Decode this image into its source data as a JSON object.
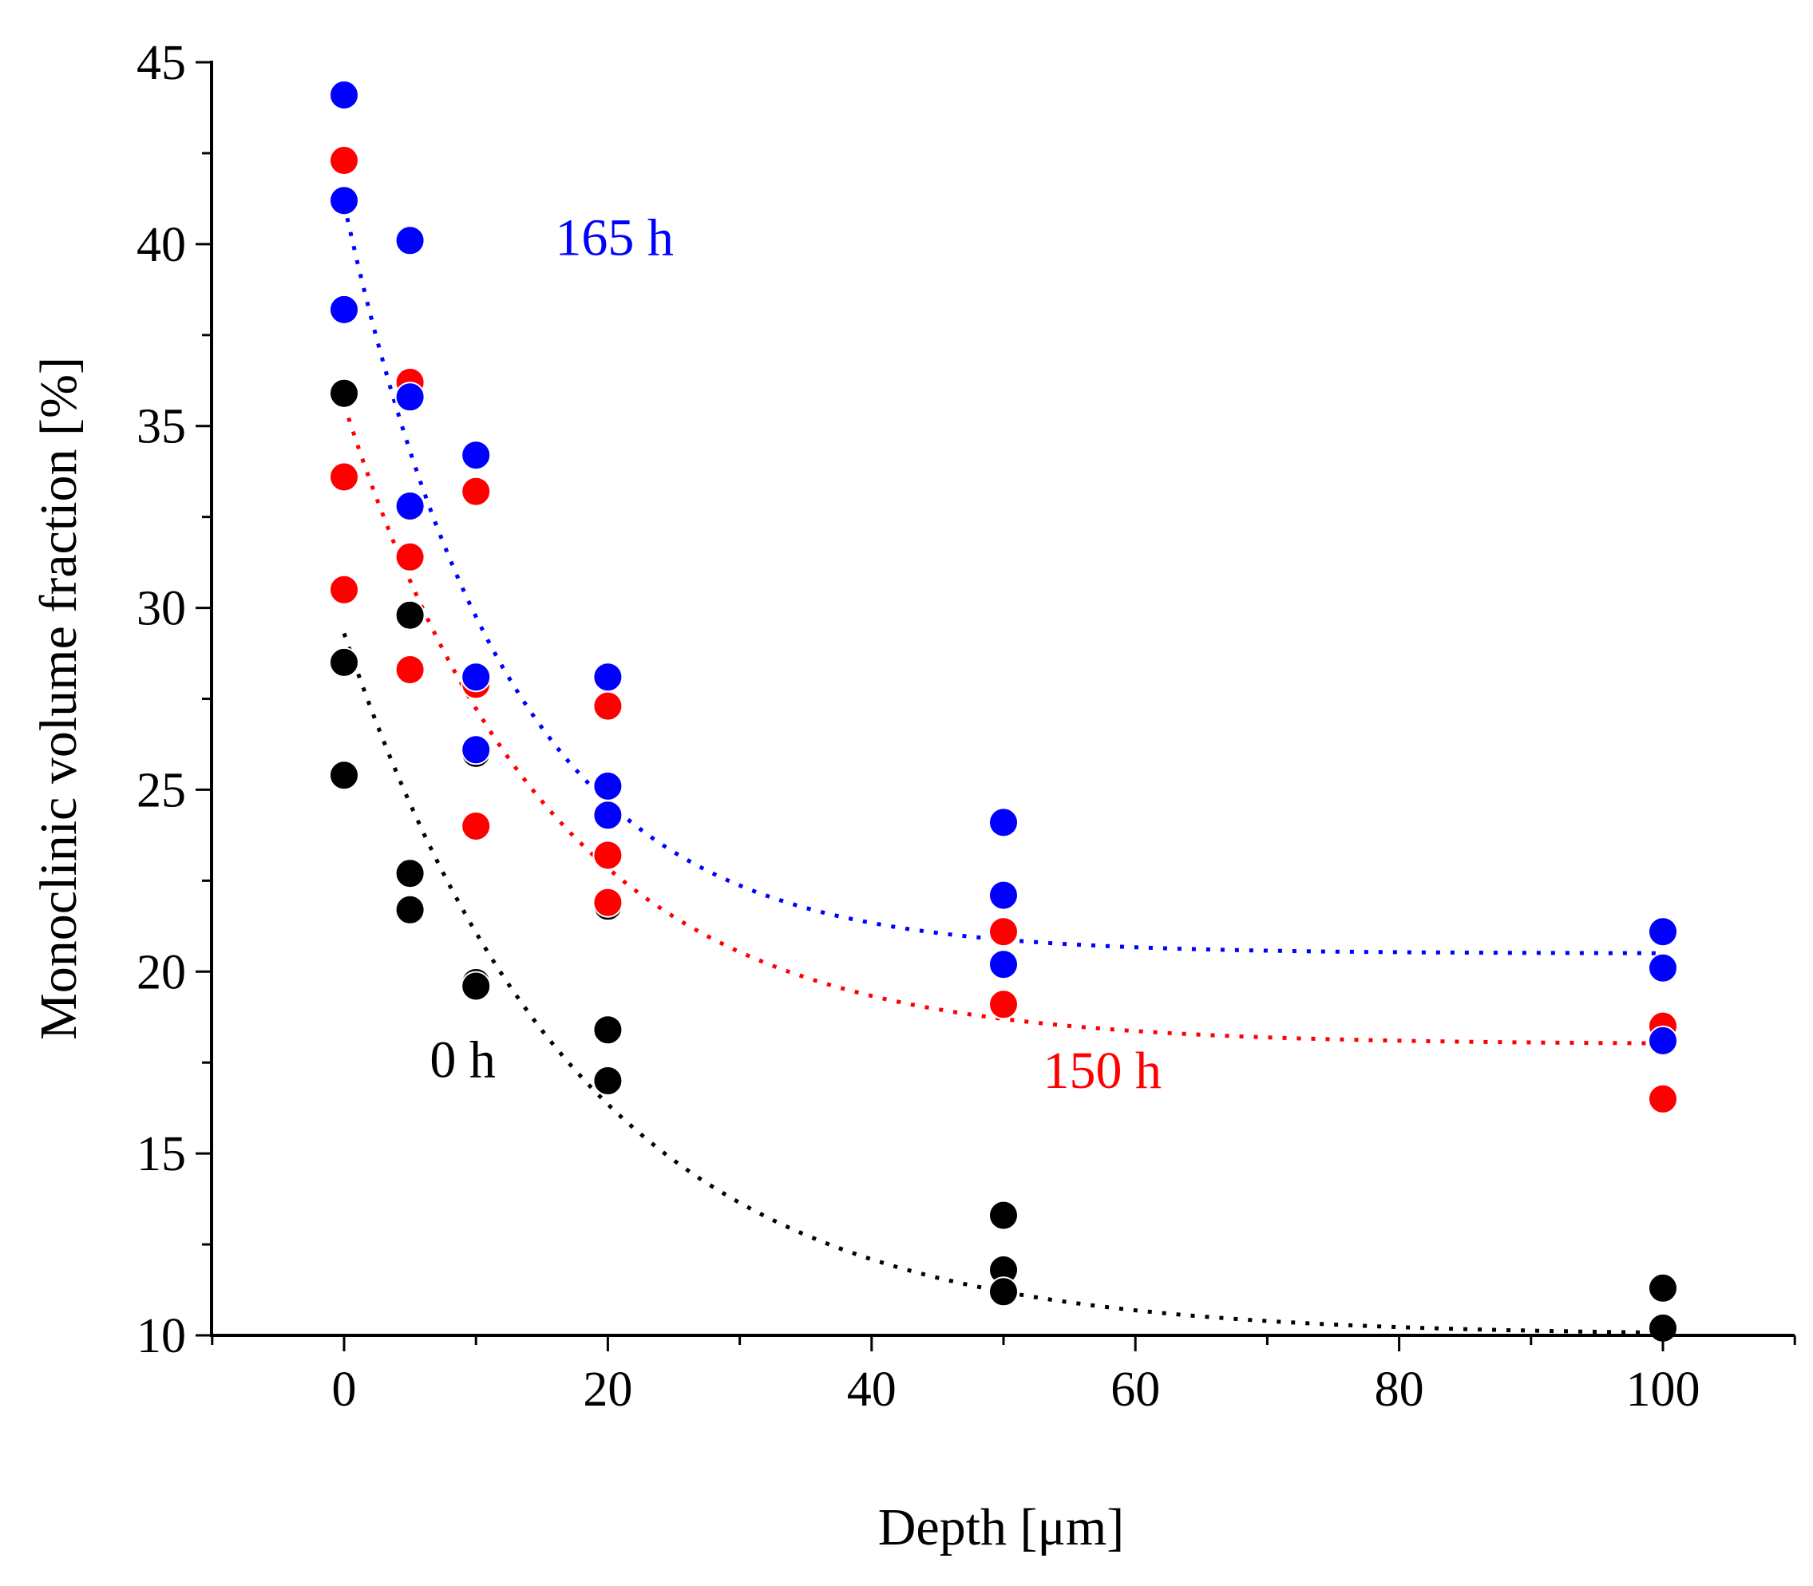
{
  "chart_data": {
    "type": "scatter",
    "title": "",
    "xlabel": "Depth [μm]",
    "ylabel": "Monoclinic volume fraction [%]",
    "xlim": [
      -10,
      110
    ],
    "ylim": [
      10,
      45
    ],
    "xticks": [
      0,
      20,
      40,
      60,
      80,
      100
    ],
    "yticks": [
      10,
      15,
      20,
      25,
      30,
      35,
      40,
      45
    ],
    "grid": false,
    "legend": "none (inline series labels)",
    "series": [
      {
        "name": "0 h",
        "color": "#000000",
        "points": [
          {
            "x": 0,
            "y": 35.9
          },
          {
            "x": 0,
            "y": 28.5
          },
          {
            "x": 0,
            "y": 25.4
          },
          {
            "x": 5,
            "y": 29.8
          },
          {
            "x": 5,
            "y": 22.7
          },
          {
            "x": 5,
            "y": 21.7
          },
          {
            "x": 10,
            "y": 26.0
          },
          {
            "x": 10,
            "y": 19.7
          },
          {
            "x": 10,
            "y": 19.6
          },
          {
            "x": 20,
            "y": 21.8
          },
          {
            "x": 20,
            "y": 18.4
          },
          {
            "x": 20,
            "y": 17.0
          },
          {
            "x": 50,
            "y": 13.3
          },
          {
            "x": 50,
            "y": 11.8
          },
          {
            "x": 50,
            "y": 11.2
          },
          {
            "x": 100,
            "y": 11.3
          },
          {
            "x": 100,
            "y": 10.2
          }
        ],
        "fit": {
          "y0": 10.0,
          "amplitude": 19.3,
          "decay": 18.0,
          "x_start": 0,
          "x_end": 100
        }
      },
      {
        "name": "150 h",
        "color": "#ff0000",
        "points": [
          {
            "x": 0,
            "y": 42.3
          },
          {
            "x": 0,
            "y": 33.6
          },
          {
            "x": 0,
            "y": 30.5
          },
          {
            "x": 5,
            "y": 36.2
          },
          {
            "x": 5,
            "y": 31.4
          },
          {
            "x": 5,
            "y": 28.3
          },
          {
            "x": 10,
            "y": 33.2
          },
          {
            "x": 10,
            "y": 27.9
          },
          {
            "x": 10,
            "y": 24.0
          },
          {
            "x": 20,
            "y": 27.3
          },
          {
            "x": 20,
            "y": 23.2
          },
          {
            "x": 20,
            "y": 21.9
          },
          {
            "x": 50,
            "y": 21.1
          },
          {
            "x": 50,
            "y": 19.1
          },
          {
            "x": 100,
            "y": 18.5
          },
          {
            "x": 100,
            "y": 16.5
          }
        ],
        "fit": {
          "y0": 18.0,
          "amplitude": 17.6,
          "decay": 15.5,
          "x_start": 0,
          "x_end": 100
        }
      },
      {
        "name": "165 h",
        "color": "#0000ff",
        "points": [
          {
            "x": 0,
            "y": 44.1
          },
          {
            "x": 0,
            "y": 41.2
          },
          {
            "x": 0,
            "y": 38.2
          },
          {
            "x": 5,
            "y": 40.1
          },
          {
            "x": 5,
            "y": 35.8
          },
          {
            "x": 5,
            "y": 32.8
          },
          {
            "x": 10,
            "y": 34.2
          },
          {
            "x": 10,
            "y": 28.1
          },
          {
            "x": 10,
            "y": 26.1
          },
          {
            "x": 20,
            "y": 28.1
          },
          {
            "x": 20,
            "y": 25.1
          },
          {
            "x": 20,
            "y": 24.3
          },
          {
            "x": 50,
            "y": 24.1
          },
          {
            "x": 50,
            "y": 22.1
          },
          {
            "x": 50,
            "y": 20.2
          },
          {
            "x": 100,
            "y": 21.1
          },
          {
            "x": 100,
            "y": 20.1
          },
          {
            "x": 100,
            "y": 18.1
          }
        ],
        "fit": {
          "y0": 20.5,
          "amplitude": 20.6,
          "decay": 12.5,
          "x_start": 0,
          "x_end": 100
        }
      }
    ],
    "annotations": [
      {
        "text": "165 h",
        "x": 16,
        "y": 39.7,
        "color": "#0000ff"
      },
      {
        "text": "150 h",
        "x": 53,
        "y": 16.8,
        "color": "#ff0000"
      },
      {
        "text": "0 h",
        "x": 6.5,
        "y": 17.1,
        "color": "#000000"
      }
    ]
  }
}
